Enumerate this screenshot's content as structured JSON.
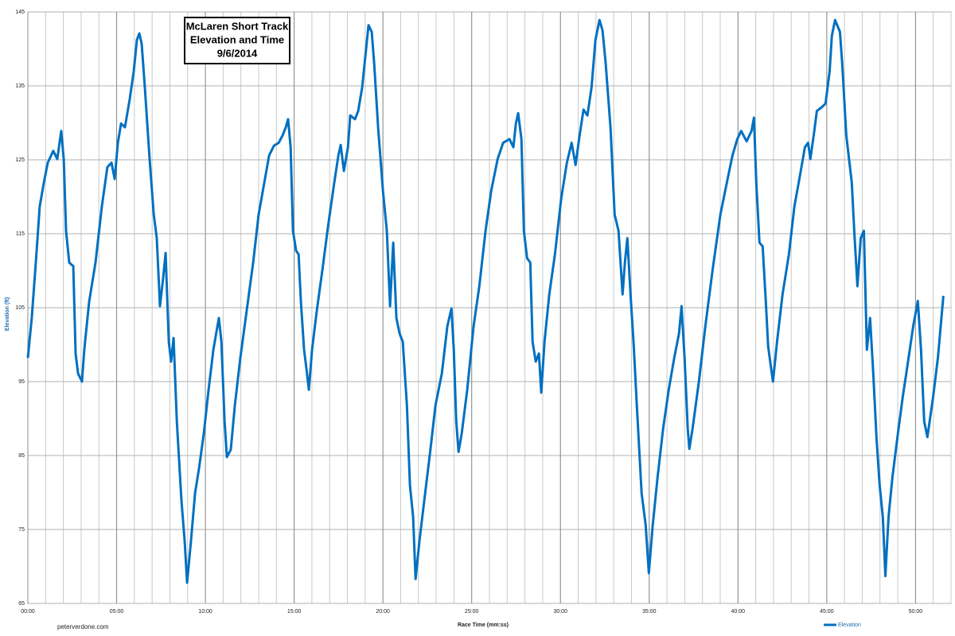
{
  "chart_data": {
    "type": "line",
    "title": [
      "McLaren Short Track",
      "Elevation and Time",
      "9/6/2014"
    ],
    "x_label": "Race Time (mm:ss)",
    "y_label": "Elevation (ft)",
    "source": "peterverdone.com",
    "legend": "bottom-right",
    "grid": true,
    "minor_xtick_step": 1,
    "xlim": [
      0,
      52
    ],
    "ylim": [
      65,
      145
    ],
    "yticks": [
      65,
      75,
      85,
      95,
      105,
      115,
      125,
      135,
      145
    ],
    "xticks": [
      {
        "value": 0,
        "label": "00:00"
      },
      {
        "value": 5,
        "label": "05:00"
      },
      {
        "value": 10,
        "label": "10:00"
      },
      {
        "value": 15,
        "label": "15:00"
      },
      {
        "value": 20,
        "label": "20:00"
      },
      {
        "value": 25,
        "label": "25:00"
      },
      {
        "value": 30,
        "label": "30:00"
      },
      {
        "value": 35,
        "label": "35:00"
      },
      {
        "value": 40,
        "label": "40:00"
      },
      {
        "value": 45,
        "label": "45:00"
      },
      {
        "value": 50,
        "label": "50:00"
      }
    ],
    "x": [
      0,
      0.22,
      0.45,
      0.67,
      0.9,
      1.12,
      1.43,
      1.66,
      1.88,
      2.02,
      2.15,
      2.33,
      2.56,
      2.69,
      2.83,
      3.05,
      3.18,
      3.45,
      3.81,
      4.17,
      4.48,
      4.71,
      4.89,
      5.07,
      5.25,
      5.47,
      5.74,
      5.96,
      6.14,
      6.28,
      6.41,
      6.59,
      6.86,
      7.09,
      7.26,
      7.44,
      7.62,
      7.76,
      7.94,
      8.07,
      8.21,
      8.39,
      8.65,
      8.83,
      8.97,
      9.19,
      9.42,
      9.64,
      9.91,
      10.18,
      10.45,
      10.76,
      10.9,
      11.08,
      11.21,
      11.43,
      11.66,
      11.97,
      12.33,
      12.69,
      13.0,
      13.32,
      13.59,
      13.86,
      14.13,
      14.35,
      14.53,
      14.66,
      14.8,
      14.93,
      15.11,
      15.25,
      15.38,
      15.56,
      15.7,
      15.83,
      16.01,
      16.28,
      16.59,
      16.91,
      17.26,
      17.49,
      17.62,
      17.8,
      18.03,
      18.16,
      18.43,
      18.61,
      18.83,
      19.06,
      19.19,
      19.37,
      19.51,
      19.73,
      20.0,
      20.22,
      20.4,
      20.58,
      20.76,
      20.94,
      21.12,
      21.35,
      21.52,
      21.7,
      21.84,
      22.06,
      22.33,
      22.65,
      22.96,
      23.32,
      23.63,
      23.86,
      23.99,
      24.13,
      24.26,
      24.44,
      24.75,
      25.11,
      25.43,
      25.78,
      26.1,
      26.46,
      26.77,
      27.13,
      27.35,
      27.49,
      27.62,
      27.8,
      27.94,
      28.12,
      28.3,
      28.43,
      28.61,
      28.79,
      28.92,
      29.1,
      29.37,
      29.69,
      30.04,
      30.36,
      30.63,
      30.85,
      31.08,
      31.3,
      31.52,
      31.75,
      31.97,
      32.2,
      32.37,
      32.55,
      32.82,
      33.05,
      33.27,
      33.5,
      33.63,
      33.77,
      33.95,
      34.13,
      34.3,
      34.57,
      34.8,
      34.98,
      35.2,
      35.47,
      35.78,
      36.1,
      36.41,
      36.68,
      36.82,
      36.99,
      37.17,
      37.26,
      37.44,
      37.8,
      38.16,
      38.57,
      39.01,
      39.37,
      39.69,
      39.96,
      40.18,
      40.49,
      40.76,
      40.9,
      41.03,
      41.21,
      41.39,
      41.57,
      41.7,
      41.84,
      41.97,
      42.2,
      42.51,
      42.87,
      43.18,
      43.5,
      43.77,
      43.95,
      44.08,
      44.3,
      44.44,
      44.71,
      44.93,
      45.16,
      45.29,
      45.47,
      45.74,
      45.87,
      46.1,
      46.41,
      46.55,
      46.73,
      46.91,
      47.09,
      47.26,
      47.44,
      47.62,
      47.8,
      47.98,
      48.16,
      48.3,
      48.48,
      48.7,
      49.01,
      49.28,
      49.55,
      49.87,
      50.13,
      50.31,
      50.49,
      50.67,
      50.99,
      51.26,
      51.57
    ],
    "series": [
      {
        "name": "Elevation",
        "color": "#0070c0",
        "values": [
          98.2,
          103.6,
          111.1,
          118.7,
          121.9,
          124.6,
          126.2,
          125.1,
          128.9,
          125.1,
          115.4,
          111.1,
          110.6,
          98.8,
          96.1,
          95.0,
          99.3,
          105.8,
          111.1,
          118.7,
          124.0,
          124.6,
          122.4,
          127.3,
          129.9,
          129.4,
          133.2,
          136.9,
          141.2,
          142.1,
          140.7,
          134.8,
          125.1,
          117.6,
          114.4,
          105.2,
          109.0,
          112.4,
          100.4,
          97.7,
          100.9,
          89.6,
          78.9,
          73.5,
          67.8,
          73.5,
          79.9,
          83.2,
          88.0,
          93.9,
          99.3,
          103.6,
          100.4,
          89.6,
          84.8,
          85.8,
          91.8,
          98.2,
          104.7,
          111.1,
          117.6,
          121.9,
          125.6,
          126.9,
          127.3,
          128.3,
          129.4,
          130.5,
          126.7,
          115.4,
          112.7,
          112.2,
          105.8,
          99.3,
          96.6,
          93.9,
          99.3,
          104.7,
          110.1,
          116.0,
          121.9,
          125.6,
          127.0,
          123.5,
          126.7,
          131.0,
          130.5,
          131.6,
          134.8,
          140.2,
          143.2,
          142.3,
          138.0,
          129.4,
          120.8,
          115.4,
          105.2,
          113.8,
          103.6,
          101.5,
          100.4,
          91.8,
          81.0,
          76.7,
          68.3,
          73.5,
          78.9,
          85.3,
          91.8,
          96.1,
          102.5,
          104.9,
          99.3,
          89.6,
          85.5,
          88.0,
          93.9,
          102.5,
          107.9,
          115.4,
          120.8,
          125.1,
          127.3,
          127.8,
          126.7,
          129.9,
          131.3,
          127.8,
          115.4,
          111.7,
          111.1,
          100.4,
          97.7,
          98.8,
          93.5,
          100.4,
          106.8,
          112.2,
          119.7,
          124.6,
          127.3,
          124.3,
          128.3,
          131.8,
          131.0,
          134.8,
          141.2,
          143.9,
          142.5,
          138.0,
          129.4,
          117.6,
          115.4,
          106.8,
          111.1,
          114.4,
          106.8,
          99.7,
          91.8,
          79.9,
          75.6,
          69.1,
          75.6,
          82.1,
          88.6,
          93.9,
          98.2,
          101.5,
          105.2,
          98.2,
          88.6,
          85.9,
          88.6,
          95.0,
          102.5,
          110.1,
          117.6,
          121.9,
          125.6,
          127.8,
          128.9,
          127.5,
          128.9,
          130.7,
          121.9,
          113.8,
          113.3,
          105.8,
          99.8,
          97.2,
          95.0,
          100.4,
          106.8,
          112.2,
          118.7,
          123.0,
          126.7,
          127.3,
          125.1,
          128.9,
          131.6,
          132.1,
          132.6,
          136.9,
          141.8,
          143.9,
          142.3,
          138.0,
          128.3,
          121.9,
          115.4,
          107.9,
          114.4,
          115.4,
          99.3,
          103.6,
          96.1,
          87.5,
          81.0,
          76.7,
          68.7,
          76.7,
          82.1,
          88.0,
          92.9,
          97.2,
          102.5,
          105.9,
          99.3,
          89.6,
          87.5,
          92.9,
          98.2,
          106.6
        ]
      }
    ]
  }
}
